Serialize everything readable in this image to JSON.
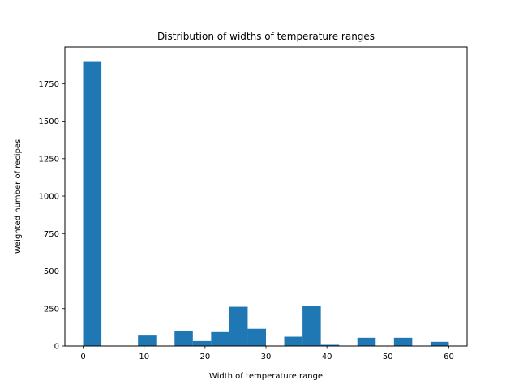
{
  "chart_data": {
    "type": "bar",
    "title": "Distribution of widths of temperature ranges",
    "xlabel": "Width of temperature range",
    "ylabel": "Weighted number of recipes",
    "bin_edges": [
      0,
      3,
      6,
      9,
      12,
      15,
      18,
      21,
      24,
      27,
      30,
      33,
      36,
      39,
      42,
      45,
      48,
      51,
      54,
      57,
      60
    ],
    "values": [
      1900,
      0,
      0,
      75,
      0,
      98,
      33,
      93,
      262,
      115,
      0,
      62,
      268,
      8,
      0,
      55,
      0,
      55,
      0,
      28
    ],
    "xlim": [
      -3,
      63
    ],
    "ylim": [
      0,
      1995
    ],
    "xticks": [
      0,
      10,
      20,
      30,
      40,
      50,
      60
    ],
    "yticks": [
      0,
      250,
      500,
      750,
      1000,
      1250,
      1500,
      1750
    ],
    "bar_color": "#1f77b4",
    "grid": false
  }
}
